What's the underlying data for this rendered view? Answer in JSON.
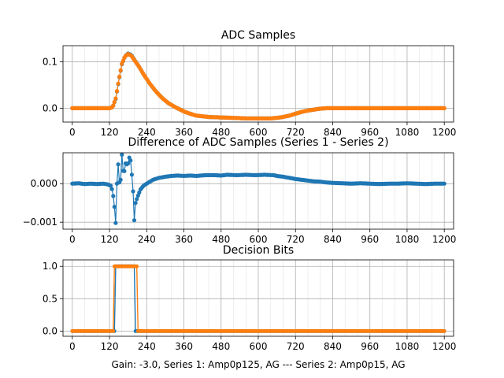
{
  "figure": {
    "footer": "Gain: -3.0, Series 1: Amp0p125, AG --- Series 2: Amp0p15, AG"
  },
  "colors": {
    "series1": "#1f77b4",
    "series2": "#ff7f0e",
    "grid": "#b0b0b0"
  },
  "chart_data": [
    {
      "type": "scatter",
      "title": "ADC Samples",
      "xlim": [
        -30,
        1230
      ],
      "ylim": [
        -0.03,
        0.135
      ],
      "xticks": [
        0,
        120,
        240,
        360,
        480,
        600,
        720,
        840,
        960,
        1080,
        1200
      ],
      "yticks": [
        0.0,
        0.1
      ],
      "ytick_labels": [
        "0.0",
        "0.1"
      ],
      "grid": true,
      "series": [
        {
          "color": "#1f77b4",
          "x": [
            0,
            100,
            120,
            130,
            140,
            150,
            160,
            170,
            180,
            190,
            200,
            215,
            230,
            250,
            270,
            290,
            310,
            330,
            360,
            380,
            400,
            440,
            480,
            520,
            560,
            600,
            640,
            660,
            680,
            700,
            720,
            740,
            760,
            780,
            800,
            820,
            840,
            900,
            960,
            1020,
            1080,
            1140,
            1200
          ],
          "y": [
            0.0,
            0.0,
            0.0,
            0.002,
            0.02,
            0.06,
            0.095,
            0.112,
            0.118,
            0.115,
            0.105,
            0.09,
            0.073,
            0.053,
            0.036,
            0.022,
            0.011,
            0.003,
            -0.007,
            -0.012,
            -0.016,
            -0.019,
            -0.02,
            -0.021,
            -0.022,
            -0.022,
            -0.022,
            -0.021,
            -0.019,
            -0.016,
            -0.012,
            -0.008,
            -0.005,
            -0.003,
            -0.001,
            0.0,
            0.0,
            0.0,
            0.0,
            0.0,
            0.0,
            0.0,
            0.0
          ]
        },
        {
          "color": "#ff7f0e",
          "x": [
            0,
            100,
            120,
            130,
            140,
            150,
            160,
            170,
            180,
            190,
            200,
            215,
            230,
            250,
            270,
            290,
            310,
            330,
            360,
            380,
            400,
            440,
            480,
            520,
            560,
            600,
            640,
            660,
            680,
            700,
            720,
            740,
            760,
            780,
            800,
            820,
            840,
            900,
            960,
            1020,
            1080,
            1140,
            1200
          ],
          "y": [
            0.0,
            0.0,
            0.0,
            0.002,
            0.021,
            0.061,
            0.096,
            0.112,
            0.117,
            0.114,
            0.104,
            0.09,
            0.073,
            0.053,
            0.036,
            0.022,
            0.011,
            0.003,
            -0.007,
            -0.012,
            -0.016,
            -0.019,
            -0.02,
            -0.021,
            -0.022,
            -0.022,
            -0.022,
            -0.021,
            -0.019,
            -0.016,
            -0.012,
            -0.008,
            -0.005,
            -0.003,
            -0.001,
            0.0,
            0.0,
            0.0,
            0.0,
            0.0,
            0.0,
            0.0,
            0.0
          ]
        }
      ]
    },
    {
      "type": "scatter",
      "title": "Difference of ADC Samples (Series 1 - Series 2)",
      "xlim": [
        -30,
        1230
      ],
      "ylim": [
        -0.00118,
        0.0008
      ],
      "xticks": [
        0,
        120,
        240,
        360,
        480,
        600,
        720,
        840,
        960,
        1080,
        1200
      ],
      "yticks": [
        -0.001,
        0.0
      ],
      "ytick_labels": [
        "−0.001",
        "0.000"
      ],
      "grid": true,
      "series": [
        {
          "color": "#1f77b4",
          "x": [
            0,
            20,
            40,
            60,
            80,
            100,
            115,
            125,
            130,
            135,
            138,
            140,
            142,
            145,
            148,
            150,
            153,
            156,
            158,
            160,
            163,
            166,
            170,
            174,
            178,
            182,
            186,
            190,
            193,
            196,
            198,
            200,
            202,
            204,
            206,
            210,
            215,
            220,
            230,
            240,
            260,
            280,
            300,
            320,
            340,
            360,
            380,
            400,
            430,
            460,
            480,
            500,
            530,
            560,
            590,
            620,
            650,
            660,
            680,
            700,
            720,
            740,
            760,
            780,
            800,
            820,
            840,
            870,
            900,
            930,
            960,
            990,
            1020,
            1050,
            1080,
            1110,
            1140,
            1170,
            1200
          ],
          "y": [
            0.0,
            1e-05,
            -1e-05,
            0.0,
            -1e-05,
            0.0,
            -2e-05,
            -6e-05,
            -0.0002,
            -0.0005,
            -0.0008,
            -0.00102,
            -0.0006,
            0.0003,
            0.0005,
            0.0004,
            -0.00015,
            0.0001,
            0.0006,
            0.00075,
            0.0004,
            0.0002,
            0.00045,
            0.0006,
            0.0004,
            0.00065,
            0.0007,
            0.0005,
            0.0001,
            -0.0002,
            -0.0005,
            -0.00095,
            -0.0007,
            -0.0005,
            -0.00045,
            -0.00035,
            -0.00025,
            -0.00015,
            -5e-05,
            0.0,
            0.0001,
            0.00015,
            0.00018,
            0.0002,
            0.00021,
            0.0002,
            0.00021,
            0.0002,
            0.00022,
            0.00022,
            0.00021,
            0.00023,
            0.00022,
            0.00023,
            0.00022,
            0.00023,
            0.00022,
            0.0002,
            0.00018,
            0.00015,
            0.00012,
            0.0001,
            8e-05,
            6e-05,
            5e-05,
            3e-05,
            2e-05,
            1e-05,
            0.0,
            1e-05,
            0.0,
            -1e-05,
            0.0,
            0.0,
            1e-05,
            0.0,
            -1e-05,
            0.0,
            0.0
          ]
        }
      ]
    },
    {
      "type": "line",
      "title": "Decision Bits",
      "xlim": [
        -30,
        1230
      ],
      "ylim": [
        -0.08,
        1.1
      ],
      "xticks": [
        0,
        120,
        240,
        360,
        480,
        600,
        720,
        840,
        960,
        1080,
        1200
      ],
      "yticks": [
        0.0,
        0.5,
        1.0
      ],
      "ytick_labels": [
        "0.0",
        "0.5",
        "1.0"
      ],
      "grid": true,
      "xlabel": "Gain: -3.0, Series 1: Amp0p125, AG --- Series 2: Amp0p15, AG",
      "series": [
        {
          "color": "#1f77b4",
          "high_start": 138,
          "high_end": 203
        },
        {
          "color": "#ff7f0e",
          "high_start": 136,
          "high_end": 208
        }
      ]
    }
  ]
}
